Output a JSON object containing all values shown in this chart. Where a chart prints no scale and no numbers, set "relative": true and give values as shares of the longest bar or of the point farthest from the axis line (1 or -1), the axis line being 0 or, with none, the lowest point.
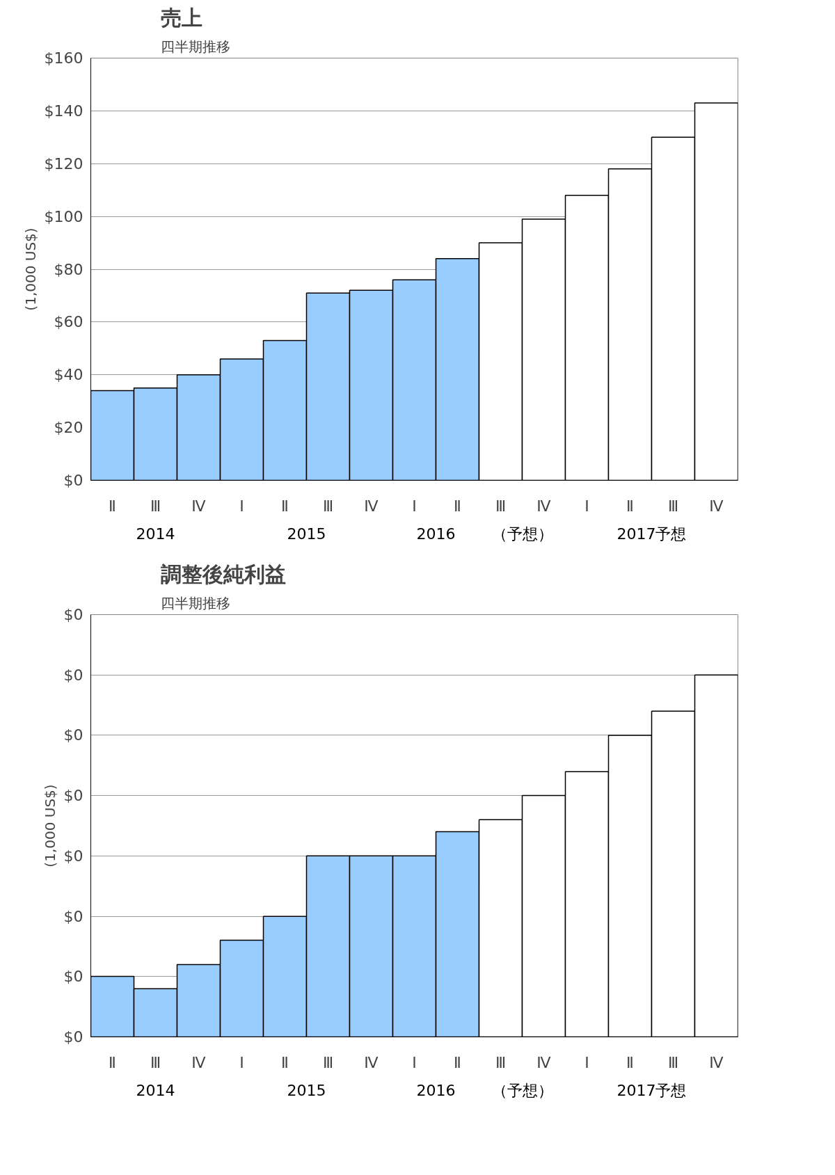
{
  "chart_data": [
    {
      "type": "bar",
      "title": "売上",
      "subtitle": "四半期推移",
      "ylabel": "(1,000 US$)",
      "categories": [
        "Ⅱ",
        "Ⅲ",
        "Ⅳ",
        "Ⅰ",
        "Ⅱ",
        "Ⅲ",
        "Ⅳ",
        "Ⅰ",
        "Ⅱ",
        "Ⅲ",
        "Ⅳ",
        "Ⅰ",
        "Ⅱ",
        "Ⅲ",
        "Ⅳ"
      ],
      "values": [
        34,
        35,
        40,
        46,
        53,
        71,
        72,
        76,
        84,
        90,
        99,
        108,
        118,
        130,
        143
      ],
      "colors": [
        "#99ccff",
        "#99ccff",
        "#99ccff",
        "#99ccff",
        "#99ccff",
        "#99ccff",
        "#99ccff",
        "#99ccff",
        "#99ccff",
        "#ffffff",
        "#ffffff",
        "#ffffff",
        "#ffffff",
        "#ffffff",
        "#ffffff"
      ],
      "annotations": [
        "2014",
        "2015",
        "2016",
        "（予想）",
        "2017予想"
      ],
      "ylim": [
        0,
        160
      ],
      "yticks": [
        {
          "value": 0,
          "label": "$0"
        },
        {
          "value": 20,
          "label": "$20"
        },
        {
          "value": 40,
          "label": "$40"
        },
        {
          "value": 60,
          "label": "$60"
        },
        {
          "value": 80,
          "label": "$80"
        },
        {
          "value": 100,
          "label": "$100"
        },
        {
          "value": 120,
          "label": "$120"
        },
        {
          "value": 140,
          "label": "$140"
        },
        {
          "value": 160,
          "label": "$160"
        }
      ],
      "grid": "y"
    },
    {
      "type": "bar",
      "title": "調整後純利益",
      "subtitle": "四半期推移",
      "ylabel": "(1,000 US$)",
      "categories": [
        "Ⅱ",
        "Ⅲ",
        "Ⅳ",
        "Ⅰ",
        "Ⅱ",
        "Ⅲ",
        "Ⅳ",
        "Ⅰ",
        "Ⅱ",
        "Ⅲ",
        "Ⅳ",
        "Ⅰ",
        "Ⅱ",
        "Ⅲ",
        "Ⅳ"
      ],
      "values": [
        0.167,
        0.133,
        0.2,
        0.267,
        0.333,
        0.5,
        0.5,
        0.5,
        0.567,
        0.6,
        0.667,
        0.733,
        0.833,
        0.9,
        1
      ],
      "colors": [
        "#99ccff",
        "#99ccff",
        "#99ccff",
        "#99ccff",
        "#99ccff",
        "#99ccff",
        "#99ccff",
        "#99ccff",
        "#99ccff",
        "#ffffff",
        "#ffffff",
        "#ffffff",
        "#ffffff",
        "#ffffff",
        "#ffffff"
      ],
      "relative": true,
      "annotations": [
        "2014",
        "2015",
        "2016",
        "（予想）",
        "2017予想",
        "$0",
        "$0",
        "$0",
        "$0",
        "$0",
        "$0",
        "$0",
        "$0"
      ],
      "grid": "y"
    }
  ]
}
